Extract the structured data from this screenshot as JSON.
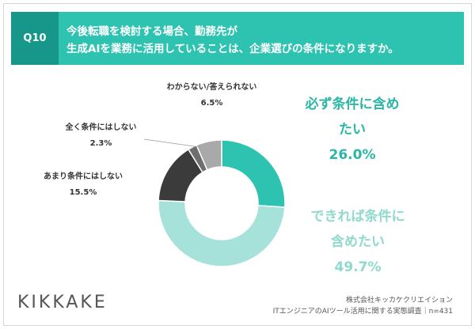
{
  "chart_data": {
    "type": "donut",
    "question": "Q10",
    "title": [
      "今後転職を検討する場合、勤務先が",
      "生成AIを業務に活用していることは、企業選びの条件になりますか。"
    ],
    "categories": [
      "必ず条件に含めたい",
      "できれば条件に含めたい",
      "あまり条件にはしない",
      "全く条件にはしない",
      "わからない/答えられない"
    ],
    "values": [
      26.0,
      49.7,
      15.5,
      2.3,
      6.5
    ],
    "value_labels": [
      "26.0%",
      "49.7%",
      "15.5%",
      "2.3%",
      "6.5%"
    ],
    "colors": [
      "#2ec3b1",
      "#a6e2d9",
      "#3b3b3b",
      "#6e6e6e",
      "#a9a9a9"
    ],
    "logo": "KIKKAKE",
    "source": [
      "株式会社キッカケクリエイション",
      "ITエンジニアのAIツール活用に関する実態調査｜n=431"
    ]
  }
}
